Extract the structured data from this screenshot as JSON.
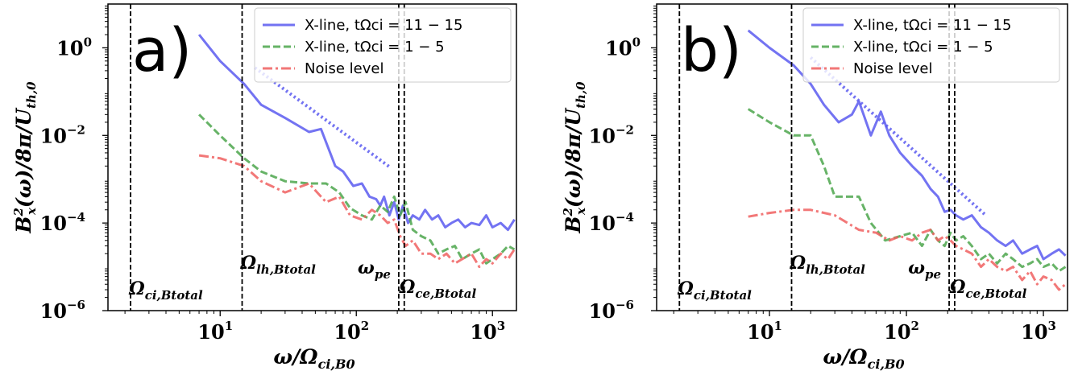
{
  "chart_data": [
    {
      "type": "line",
      "panel_label": "a)",
      "xlabel": "ω/Ω_ci,B0",
      "ylabel": "B_x²(ω)/8π/U_th,0",
      "xscale": "log",
      "yscale": "log",
      "xlim": [
        1.5,
        1500
      ],
      "ylim": [
        1e-06,
        10
      ],
      "xticks": [
        "10^1",
        "10^2",
        "10^3"
      ],
      "yticks": [
        "10^-6",
        "10^-4",
        "10^-2",
        "10^0"
      ],
      "legend_position": "top-right",
      "series": [
        {
          "name": "X-line, tΩci = 11 − 15",
          "color": "#5a5af0",
          "style": "solid",
          "x": [
            7,
            10,
            15,
            20,
            30,
            45,
            55,
            70,
            80,
            95,
            110,
            125,
            140,
            150,
            160,
            175,
            190,
            205,
            220,
            240,
            260,
            290,
            320,
            360,
            400,
            450,
            500,
            560,
            630,
            700,
            800,
            900,
            1000,
            1150,
            1300,
            1450
          ],
          "y": [
            2.0,
            0.5,
            0.15,
            0.05,
            0.025,
            0.012,
            0.014,
            0.002,
            0.0015,
            0.0007,
            0.0008,
            0.0004,
            0.00035,
            0.00025,
            0.0004,
            0.00015,
            0.0003,
            0.00012,
            0.00025,
            0.0001,
            0.00015,
            0.00012,
            0.0002,
            0.00012,
            0.00015,
            8e-05,
            0.0001,
            0.00012,
            8e-05,
            0.0001,
            9e-05,
            0.00015,
            8e-05,
            0.0001,
            7e-05,
            0.00012
          ]
        },
        {
          "name": "X-line, tΩci = 1 − 5",
          "color": "#4ca64c",
          "style": "dashed",
          "x": [
            7,
            10,
            15,
            20,
            30,
            45,
            60,
            75,
            90,
            110,
            130,
            150,
            170,
            190,
            210,
            230,
            260,
            300,
            350,
            400,
            460,
            530,
            600,
            700,
            800,
            900,
            1000,
            1150,
            1300,
            1450
          ],
          "y": [
            0.03,
            0.01,
            0.003,
            0.0015,
            0.0009,
            0.0008,
            0.0008,
            0.0005,
            0.00022,
            0.00015,
            0.00012,
            0.00025,
            0.00018,
            0.0004,
            0.00015,
            0.0003,
            7e-05,
            5e-05,
            4e-05,
            2e-05,
            2.5e-05,
            3e-05,
            1.5e-05,
            2e-05,
            2.5e-05,
            1.2e-05,
            1.5e-05,
            2e-05,
            3e-05,
            2.5e-05
          ]
        },
        {
          "name": "Noise level",
          "color": "#f06060",
          "style": "dashdot",
          "x": [
            7,
            10,
            15,
            20,
            30,
            45,
            60,
            75,
            90,
            110,
            130,
            150,
            170,
            190,
            210,
            230,
            260,
            300,
            350,
            400,
            460,
            530,
            600,
            700,
            800,
            900,
            1000,
            1150,
            1300,
            1450
          ],
          "y": [
            0.0035,
            0.003,
            0.002,
            0.0009,
            0.0005,
            0.0008,
            0.0003,
            0.0004,
            0.00015,
            0.00012,
            0.0002,
            0.00015,
            0.0001,
            0.00012,
            5e-05,
            3e-05,
            4e-05,
            2e-05,
            2e-05,
            1.5e-05,
            2e-05,
            1.2e-05,
            1.5e-05,
            2e-05,
            1e-05,
            1.5e-05,
            1.2e-05,
            2e-05,
            1.5e-05,
            2.5e-05
          ]
        },
        {
          "name": "",
          "color": "#5a5af0",
          "style": "dotted",
          "x": [
            18,
            180
          ],
          "y": [
            0.35,
            0.0018
          ]
        }
      ],
      "vlines": [
        {
          "label": "Ω_ci,Btotal",
          "x": 2.2
        },
        {
          "label": "Ω_lh,Btotal",
          "x": 14.5
        },
        {
          "label": "ω_pe",
          "x": 205
        },
        {
          "label": "Ω_ce,Btotal",
          "x": 225
        }
      ]
    },
    {
      "type": "line",
      "panel_label": "b)",
      "xlabel": "ω/Ω_ci,B0",
      "ylabel": "B_x²(ω)/8π/U_th,0",
      "xscale": "log",
      "yscale": "log",
      "xlim": [
        1.5,
        1500
      ],
      "ylim": [
        1e-06,
        10
      ],
      "xticks": [
        "10^1",
        "10^2",
        "10^3"
      ],
      "yticks": [
        "10^-6",
        "10^-4",
        "10^-2",
        "10^0"
      ],
      "legend_position": "top-right",
      "series": [
        {
          "name": "X-line, tΩci = 11 − 15",
          "color": "#5a5af0",
          "style": "solid",
          "x": [
            7,
            10,
            15,
            20,
            25,
            32,
            40,
            45,
            55,
            65,
            75,
            90,
            110,
            130,
            150,
            170,
            190,
            210,
            230,
            260,
            300,
            350,
            400,
            460,
            530,
            600,
            700,
            800,
            900,
            1000,
            1150,
            1300,
            1450
          ],
          "y": [
            2.5,
            1.0,
            0.4,
            0.15,
            0.05,
            0.02,
            0.03,
            0.06,
            0.01,
            0.035,
            0.01,
            0.004,
            0.002,
            0.0012,
            0.0006,
            0.0004,
            0.00018,
            0.0002,
            0.00015,
            0.00012,
            0.00015,
            8e-05,
            6e-05,
            4e-05,
            3e-05,
            4e-05,
            2e-05,
            2.5e-05,
            3e-05,
            1.5e-05,
            2e-05,
            2.5e-05,
            1.8e-05
          ]
        },
        {
          "name": "X-line, tΩci = 1 − 5",
          "color": "#4ca64c",
          "style": "dashed",
          "x": [
            7,
            10,
            15,
            20,
            25,
            30,
            35,
            45,
            55,
            70,
            90,
            110,
            130,
            150,
            170,
            190,
            210,
            230,
            260,
            300,
            350,
            400,
            460,
            530,
            600,
            700,
            800,
            900,
            1000,
            1150,
            1300,
            1450
          ],
          "y": [
            0.04,
            0.02,
            0.01,
            0.01,
            0.002,
            0.0004,
            0.0004,
            0.0004,
            0.0001,
            4e-05,
            5e-05,
            6e-05,
            3e-05,
            7e-05,
            4e-05,
            3e-05,
            6e-05,
            4e-05,
            5e-05,
            3e-05,
            1.5e-05,
            2e-05,
            1.2e-05,
            2e-05,
            1.5e-05,
            1e-05,
            1.2e-05,
            1.5e-05,
            1e-05,
            1.2e-05,
            8e-06,
            1e-05
          ]
        },
        {
          "name": "Noise level",
          "color": "#f06060",
          "style": "dashdot",
          "x": [
            7,
            10,
            15,
            20,
            30,
            45,
            60,
            75,
            90,
            110,
            130,
            150,
            170,
            190,
            210,
            230,
            260,
            300,
            350,
            400,
            460,
            530,
            600,
            700,
            800,
            900,
            1000,
            1150,
            1300,
            1450
          ],
          "y": [
            0.00014,
            0.00017,
            0.0002,
            0.0002,
            0.00015,
            7e-05,
            6e-05,
            4e-05,
            5e-05,
            4e-05,
            6e-05,
            7e-05,
            4e-05,
            5e-05,
            4e-05,
            3e-05,
            2.5e-05,
            2e-05,
            1e-05,
            1.5e-05,
            1e-05,
            8e-06,
            1e-05,
            5e-06,
            8e-06,
            4e-06,
            6e-06,
            5e-06,
            3e-06,
            4e-06
          ]
        },
        {
          "name": "",
          "color": "#5a5af0",
          "style": "dotted",
          "x": [
            20,
            380
          ],
          "y": [
            0.6,
            0.00015
          ]
        }
      ],
      "vlines": [
        {
          "label": "Ω_ci,Btotal",
          "x": 2.2
        },
        {
          "label": "Ω_lh,Btotal",
          "x": 14.5
        },
        {
          "label": "ω_pe",
          "x": 205
        },
        {
          "label": "Ω_ce,Btotal",
          "x": 225
        }
      ]
    }
  ]
}
